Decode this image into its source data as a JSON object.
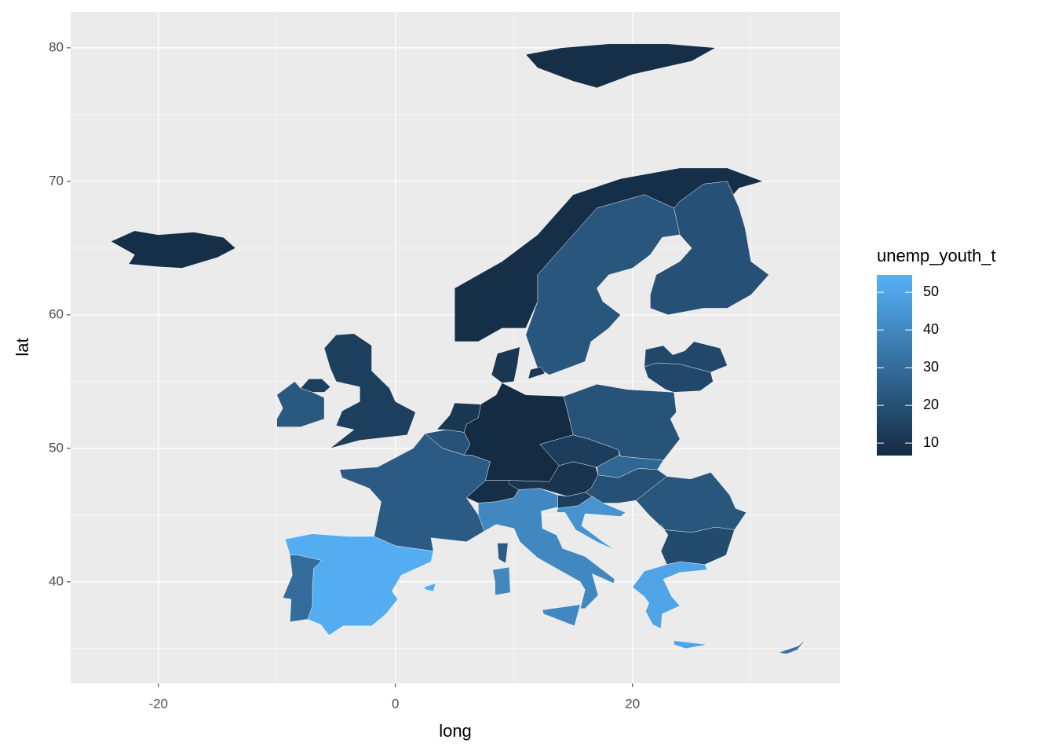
{
  "chart_data": {
    "type": "map",
    "x_label": "long",
    "y_label": "lat",
    "legend_title": "unemp_youth_t",
    "values": [
      8,
      22,
      20,
      8,
      14,
      23,
      24,
      53,
      30,
      21,
      11,
      7,
      11,
      8,
      40,
      10,
      13,
      21,
      28,
      20,
      14,
      44,
      22,
      18,
      50,
      17,
      17,
      32
    ],
    "xlim": [
      -27.4,
      37.5
    ],
    "ylim": [
      32.4,
      82.7
    ],
    "xticks": [
      -20,
      0,
      20
    ],
    "yticks": [
      40,
      50,
      60,
      70,
      80
    ],
    "x_minor_ticks": [
      -10,
      10,
      30
    ],
    "y_minor_ticks": [
      35,
      45,
      55,
      65,
      75
    ],
    "color_scale": {
      "low": "#132B43",
      "high": "#56B1F7",
      "limits": [
        6.7,
        54.6
      ],
      "ticks": [
        10,
        20,
        30,
        40,
        50
      ]
    },
    "grid": true
  }
}
